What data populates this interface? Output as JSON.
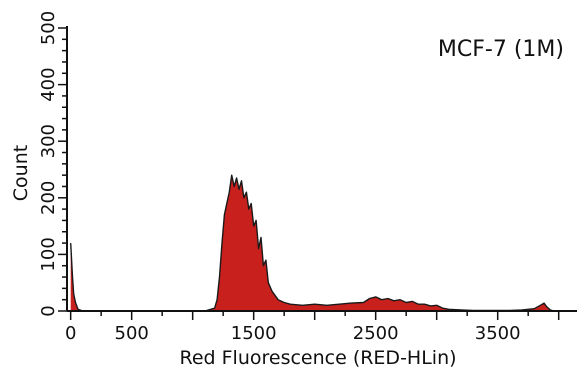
{
  "chart_data": {
    "type": "area",
    "annotation": "MCF-7 (1M)",
    "xlabel": "Red Fluorescence (RED-HLin)",
    "ylabel": "Count",
    "xlim": [
      -30,
      4150
    ],
    "ylim": [
      0,
      500
    ],
    "xticks": [
      0,
      500,
      1500,
      2500,
      3500
    ],
    "yticks": [
      0,
      100,
      200,
      300,
      400,
      500
    ],
    "grid": false,
    "fill_color": "#c8201c",
    "stroke_color": "#1a1a1a",
    "x": [
      0,
      15,
      25,
      40,
      60,
      100,
      300,
      600,
      900,
      1100,
      1180,
      1200,
      1220,
      1240,
      1260,
      1280,
      1300,
      1320,
      1340,
      1360,
      1380,
      1400,
      1420,
      1440,
      1460,
      1480,
      1500,
      1520,
      1540,
      1560,
      1580,
      1600,
      1620,
      1650,
      1700,
      1750,
      1800,
      1900,
      2000,
      2100,
      2200,
      2300,
      2400,
      2450,
      2500,
      2550,
      2600,
      2650,
      2700,
      2750,
      2800,
      2850,
      2900,
      2950,
      3000,
      3050,
      3100,
      3200,
      3300,
      3400,
      3500,
      3600,
      3700,
      3800,
      3850,
      3880,
      3900,
      3930,
      3960,
      4000,
      4100
    ],
    "values": [
      120,
      60,
      30,
      15,
      3,
      0,
      0,
      0,
      0,
      0,
      5,
      20,
      60,
      120,
      170,
      190,
      210,
      240,
      220,
      235,
      215,
      230,
      200,
      210,
      180,
      190,
      150,
      160,
      110,
      130,
      80,
      90,
      50,
      35,
      20,
      15,
      12,
      10,
      12,
      10,
      12,
      14,
      15,
      22,
      25,
      20,
      22,
      18,
      20,
      15,
      17,
      12,
      12,
      9,
      10,
      5,
      3,
      2,
      1,
      1,
      1,
      1,
      2,
      4,
      10,
      14,
      8,
      2,
      0,
      0,
      0
    ]
  }
}
